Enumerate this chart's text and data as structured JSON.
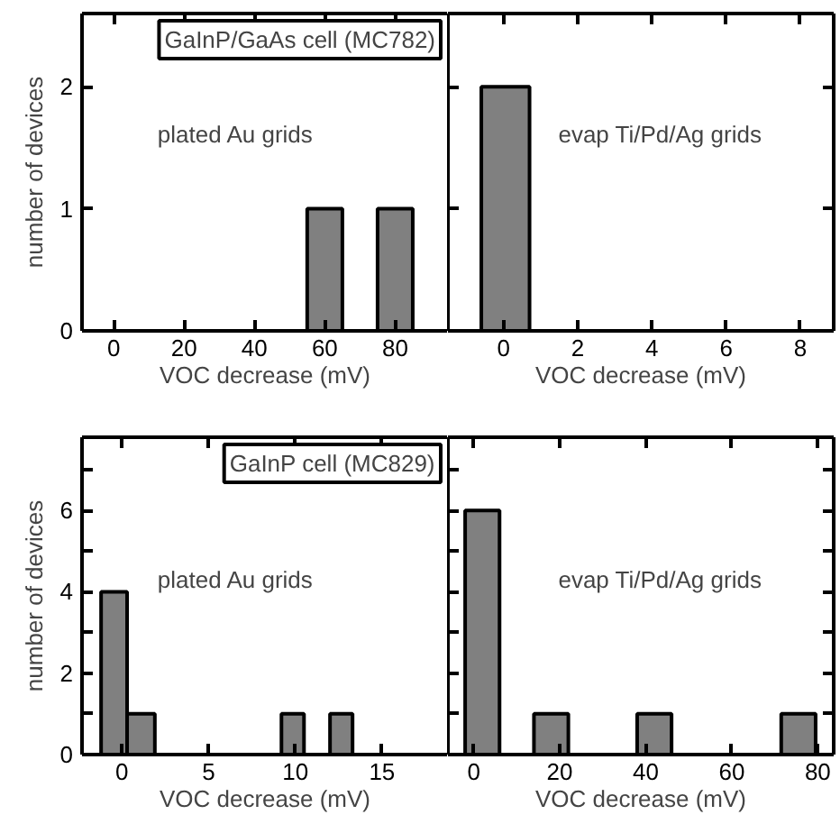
{
  "chart_data": [
    {
      "type": "histogram",
      "title": "GaInP/GaAs cell (MC782)",
      "xlabel": "VOC decrease (mV)",
      "ylabel": "number of devices",
      "annotations": [
        "plated Au grids"
      ],
      "bins": [
        55,
        65,
        75,
        85
      ],
      "values": [
        1,
        0,
        1
      ],
      "color": "#808080",
      "xlim": [
        -9,
        95
      ],
      "xticks": [
        0,
        20,
        40,
        60,
        80
      ],
      "ylim": [
        0,
        2.6
      ],
      "yticks": [
        0,
        1,
        2
      ],
      "grid": false
    },
    {
      "type": "histogram",
      "xlabel": "VOC decrease (mV)",
      "annotations": [
        "evap Ti/Pd/Ag grids"
      ],
      "bins": [
        -0.6,
        0.7
      ],
      "values": [
        2
      ],
      "color": "#808080",
      "xlim": [
        -1.5,
        8.9
      ],
      "xticks": [
        0,
        2,
        4,
        6,
        8
      ],
      "ylim": [
        0,
        2.6
      ],
      "yticks": [
        0,
        1,
        2
      ],
      "tick_labels": "x",
      "grid": false
    },
    {
      "type": "histogram",
      "title": "GaInP cell (MC829)",
      "xlabel": "VOC decrease (mV)",
      "ylabel": "number of devices",
      "annotations": [
        "plated Au grids"
      ],
      "bins": [
        -1.2,
        0.3,
        1.9,
        9.2,
        10.5,
        12,
        13.3
      ],
      "values": [
        4,
        1,
        0,
        1,
        0,
        1
      ],
      "color": "#808080",
      "xlim": [
        -2.3,
        18.8
      ],
      "xticks": [
        0,
        5,
        10,
        15
      ],
      "ylim": [
        0,
        7.8
      ],
      "yticks": [
        0,
        {
          "value": 1,
          "label": null
        },
        2,
        {
          "value": 3,
          "label": null
        },
        4,
        {
          "value": 5,
          "label": null
        },
        6,
        {
          "value": 7,
          "label": null
        }
      ],
      "grid": false
    },
    {
      "type": "histogram",
      "xlabel": "VOC decrease (mV)",
      "annotations": [
        "evap Ti/Pd/Ag grids"
      ],
      "bins": [
        -2,
        6,
        14,
        22,
        38,
        46,
        71.5,
        79.5
      ],
      "values": [
        6,
        0,
        1,
        0,
        1,
        0,
        1
      ],
      "color": "#808080",
      "xlim": [
        -6,
        83.7
      ],
      "xticks": [
        0,
        20,
        40,
        60,
        80
      ],
      "ylim": [
        0,
        7.8
      ],
      "yticks": [
        0,
        {
          "value": 1,
          "label": null
        },
        2,
        {
          "value": 3,
          "label": null
        },
        4,
        {
          "value": 5,
          "label": null
        },
        6,
        {
          "value": 7,
          "label": null
        }
      ],
      "tick_labels": "x",
      "grid": false
    }
  ]
}
